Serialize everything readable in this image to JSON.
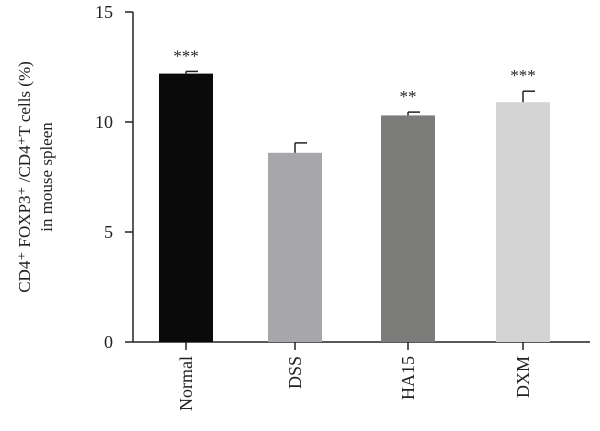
{
  "chart_data": {
    "type": "bar",
    "categories": [
      "Normal",
      "DSS",
      "HA15",
      "DXM"
    ],
    "values": [
      12.2,
      8.6,
      10.3,
      10.9
    ],
    "errors": [
      0.1,
      0.45,
      0.15,
      0.5
    ],
    "significance": [
      "***",
      "",
      "**",
      "***"
    ],
    "colors": [
      "#0a0a0a",
      "#a7a6ab",
      "#7c7d7b",
      "#d4d4d4"
    ],
    "ylim": [
      0,
      15
    ],
    "yticks": [
      0,
      5,
      10,
      15
    ],
    "ylabel_line1": "CD4⁺ FOXP3⁺ /CD4⁺T cells (%)",
    "ylabel_line2": "in mouse spleen",
    "xlabel": "",
    "title": "",
    "grid": false,
    "legend": "none"
  }
}
